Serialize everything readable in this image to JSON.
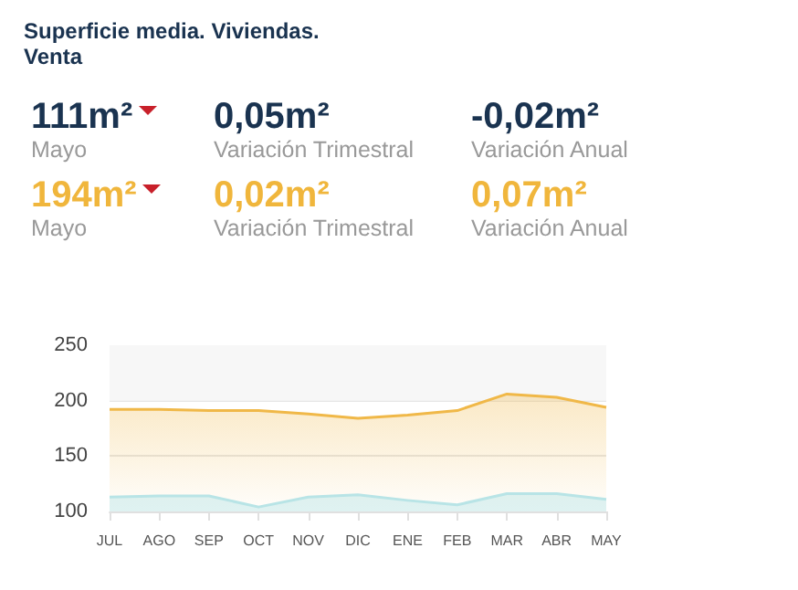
{
  "chart_data": {
    "type": "area",
    "title": "Superficie media. Viviendas. Venta",
    "annotations": [
      "111m²",
      "Mayo",
      "0,05m²",
      "Variación Trimestral",
      "-0,02m²",
      "Variación Anual",
      "194m²",
      "Mayo",
      "0,02m²",
      "Variación Trimestral",
      "0,07m²",
      "Variación Anual"
    ],
    "categories": [
      "JUL",
      "AGO",
      "SEP",
      "OCT",
      "NOV",
      "DIC",
      "ENE",
      "FEB",
      "MAR",
      "ABR",
      "MAY"
    ],
    "series": [
      {
        "color": "#f0b848",
        "values": [
          192,
          192,
          191,
          191,
          188,
          184,
          187,
          191,
          206,
          203,
          194
        ]
      },
      {
        "color": "#b8e4e6",
        "values": [
          113,
          114,
          114,
          104,
          113,
          115,
          110,
          106,
          116,
          116,
          111
        ]
      }
    ],
    "ylim": [
      100,
      250
    ],
    "yticks": [
      100,
      150,
      200,
      250
    ],
    "grid": "y",
    "bands": [
      {
        "axis": "y",
        "from": 200,
        "to": 250,
        "color": "#f7f7f7"
      }
    ]
  }
}
